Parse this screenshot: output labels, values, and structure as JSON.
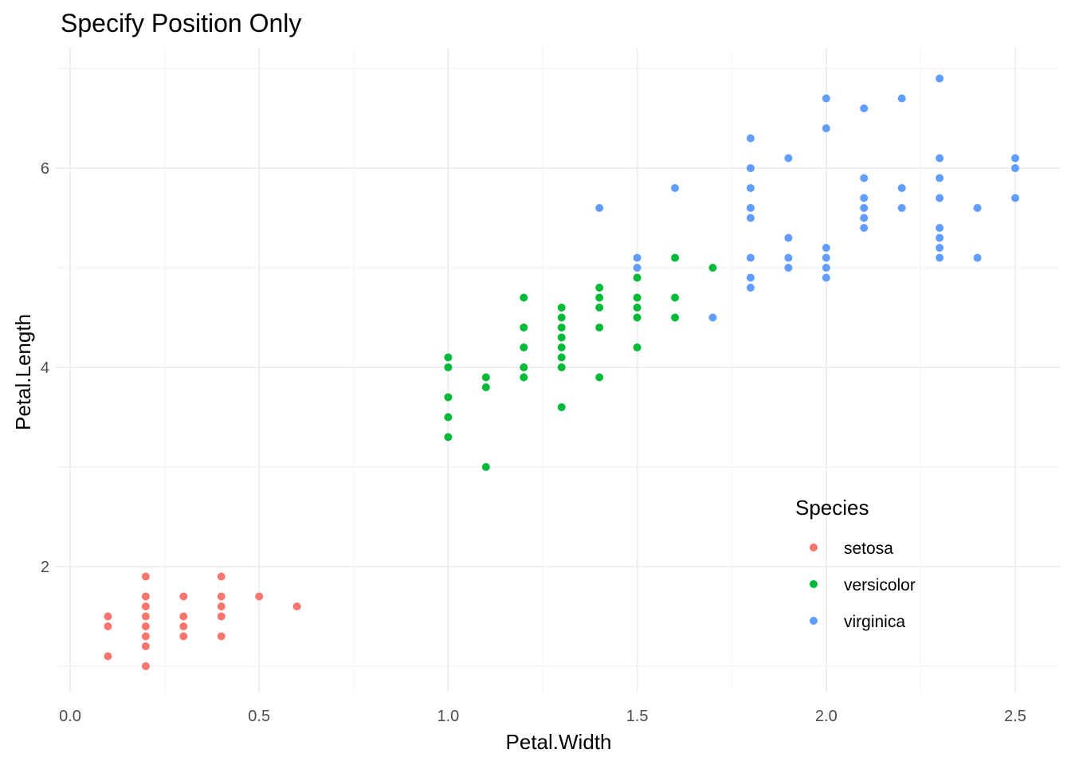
{
  "chart_data": {
    "type": "scatter",
    "title": "Specify Position Only",
    "xlabel": "Petal.Width",
    "ylabel": "Petal.Length",
    "xlim": [
      -0.02,
      2.6
    ],
    "ylim": [
      0.7,
      7.0
    ],
    "x_ticks": [
      0.0,
      0.5,
      1.0,
      1.5,
      2.0,
      2.5
    ],
    "x_tick_labels": [
      "0.0",
      "0.5",
      "1.0",
      "1.5",
      "2.0",
      "2.5"
    ],
    "y_ticks": [
      2,
      4,
      6
    ],
    "y_tick_labels": [
      "2",
      "4",
      "6"
    ],
    "grid": true,
    "legend": {
      "title": "Species",
      "placement": "bottom-right (inside plot)"
    },
    "series": [
      {
        "name": "setosa",
        "color": "#F8766D",
        "points": [
          [
            0.1,
            1.1
          ],
          [
            0.1,
            1.4
          ],
          [
            0.1,
            1.5
          ],
          [
            0.2,
            1.0
          ],
          [
            0.2,
            1.2
          ],
          [
            0.2,
            1.3
          ],
          [
            0.2,
            1.4
          ],
          [
            0.2,
            1.5
          ],
          [
            0.2,
            1.6
          ],
          [
            0.2,
            1.7
          ],
          [
            0.2,
            1.9
          ],
          [
            0.3,
            1.3
          ],
          [
            0.3,
            1.4
          ],
          [
            0.3,
            1.5
          ],
          [
            0.3,
            1.7
          ],
          [
            0.4,
            1.3
          ],
          [
            0.4,
            1.5
          ],
          [
            0.4,
            1.6
          ],
          [
            0.4,
            1.7
          ],
          [
            0.4,
            1.9
          ],
          [
            0.5,
            1.7
          ],
          [
            0.6,
            1.6
          ]
        ]
      },
      {
        "name": "versicolor",
        "color": "#00BA38",
        "points": [
          [
            1.0,
            3.3
          ],
          [
            1.0,
            3.5
          ],
          [
            1.0,
            3.7
          ],
          [
            1.0,
            4.0
          ],
          [
            1.0,
            4.1
          ],
          [
            1.1,
            3.0
          ],
          [
            1.1,
            3.8
          ],
          [
            1.1,
            3.9
          ],
          [
            1.2,
            3.9
          ],
          [
            1.2,
            4.0
          ],
          [
            1.2,
            4.2
          ],
          [
            1.2,
            4.4
          ],
          [
            1.2,
            4.7
          ],
          [
            1.3,
            3.6
          ],
          [
            1.3,
            4.0
          ],
          [
            1.3,
            4.1
          ],
          [
            1.3,
            4.2
          ],
          [
            1.3,
            4.3
          ],
          [
            1.3,
            4.4
          ],
          [
            1.3,
            4.5
          ],
          [
            1.3,
            4.6
          ],
          [
            1.4,
            3.9
          ],
          [
            1.4,
            4.4
          ],
          [
            1.4,
            4.6
          ],
          [
            1.4,
            4.7
          ],
          [
            1.4,
            4.8
          ],
          [
            1.5,
            4.2
          ],
          [
            1.5,
            4.5
          ],
          [
            1.5,
            4.6
          ],
          [
            1.5,
            4.7
          ],
          [
            1.5,
            4.9
          ],
          [
            1.6,
            4.5
          ],
          [
            1.6,
            4.7
          ],
          [
            1.6,
            5.1
          ],
          [
            1.7,
            5.0
          ]
        ]
      },
      {
        "name": "virginica",
        "color": "#619CFF",
        "points": [
          [
            1.4,
            5.6
          ],
          [
            1.5,
            5.0
          ],
          [
            1.5,
            5.1
          ],
          [
            1.6,
            5.8
          ],
          [
            1.7,
            4.5
          ],
          [
            1.8,
            4.8
          ],
          [
            1.8,
            4.9
          ],
          [
            1.8,
            5.1
          ],
          [
            1.8,
            5.5
          ],
          [
            1.8,
            5.6
          ],
          [
            1.8,
            5.8
          ],
          [
            1.8,
            6.0
          ],
          [
            1.8,
            6.3
          ],
          [
            1.9,
            5.0
          ],
          [
            1.9,
            5.1
          ],
          [
            1.9,
            5.3
          ],
          [
            1.9,
            6.1
          ],
          [
            2.0,
            4.9
          ],
          [
            2.0,
            5.0
          ],
          [
            2.0,
            5.1
          ],
          [
            2.0,
            5.2
          ],
          [
            2.0,
            6.4
          ],
          [
            2.0,
            6.7
          ],
          [
            2.1,
            5.4
          ],
          [
            2.1,
            5.5
          ],
          [
            2.1,
            5.6
          ],
          [
            2.1,
            5.7
          ],
          [
            2.1,
            5.9
          ],
          [
            2.1,
            6.6
          ],
          [
            2.2,
            5.6
          ],
          [
            2.2,
            5.8
          ],
          [
            2.2,
            6.7
          ],
          [
            2.3,
            5.1
          ],
          [
            2.3,
            5.2
          ],
          [
            2.3,
            5.3
          ],
          [
            2.3,
            5.4
          ],
          [
            2.3,
            5.7
          ],
          [
            2.3,
            5.9
          ],
          [
            2.3,
            6.1
          ],
          [
            2.3,
            6.9
          ],
          [
            2.4,
            5.1
          ],
          [
            2.4,
            5.6
          ],
          [
            2.5,
            5.7
          ],
          [
            2.5,
            6.0
          ],
          [
            2.5,
            6.1
          ]
        ]
      }
    ]
  }
}
